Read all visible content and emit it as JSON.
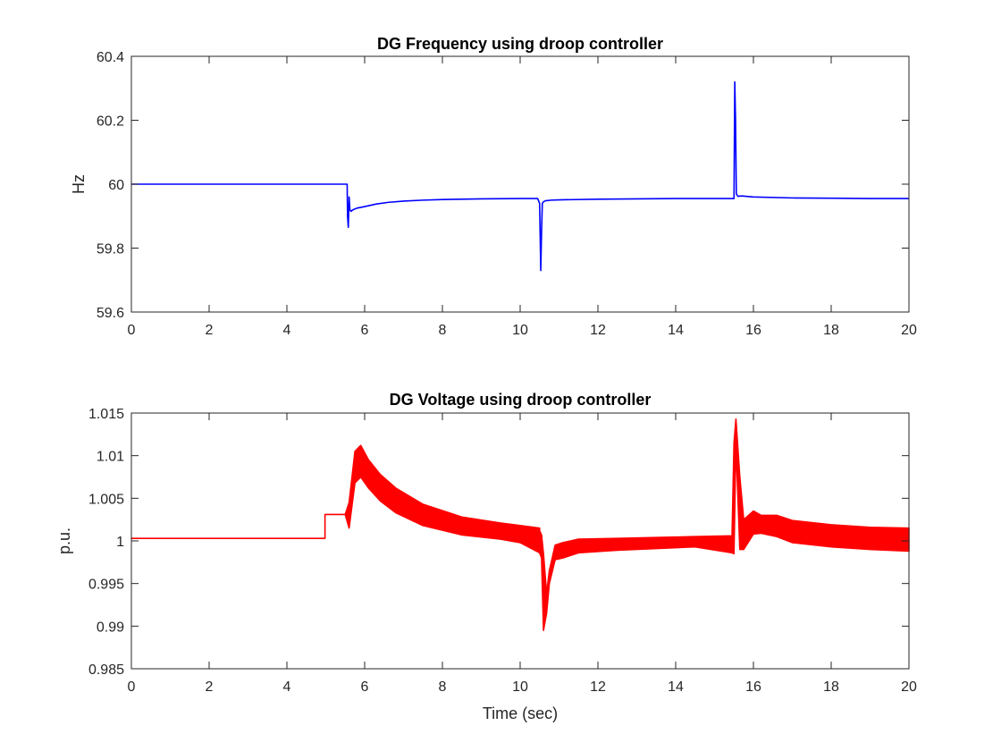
{
  "chart_data": [
    {
      "type": "line",
      "title": "DG Frequency using droop controller",
      "xlabel": "",
      "ylabel": "Hz",
      "xlim": [
        0,
        20
      ],
      "ylim": [
        59.6,
        60.4
      ],
      "xticks": [
        0,
        2,
        4,
        6,
        8,
        10,
        12,
        14,
        16,
        18,
        20
      ],
      "yticks": [
        59.6,
        59.8,
        60,
        60.2,
        60.4
      ],
      "ytick_labels": [
        "59.6",
        "59.8",
        "60",
        "60.2",
        "60.4"
      ],
      "grid": false,
      "color": "#0000ff",
      "series": [
        {
          "x": [
            0,
            5.55,
            5.56,
            5.58,
            5.6,
            5.62,
            5.65,
            5.7,
            5.8,
            6.0,
            6.3,
            6.6,
            7.0,
            7.5,
            8.0,
            9.0,
            10.0,
            10.45,
            10.5,
            10.53,
            10.55,
            10.57,
            10.6,
            10.65,
            10.8,
            11.0,
            12.0,
            13.0,
            14.0,
            15.0,
            15.45,
            15.5,
            15.52,
            15.54,
            15.56,
            15.6,
            15.7,
            16.0,
            17.0,
            18.0,
            19.0,
            20.0
          ],
          "y": [
            60.0,
            60.0,
            59.9,
            59.865,
            59.96,
            59.92,
            59.915,
            59.92,
            59.925,
            59.93,
            59.938,
            59.943,
            59.947,
            59.95,
            59.952,
            59.954,
            59.955,
            59.955,
            59.94,
            59.73,
            59.85,
            59.94,
            59.945,
            59.948,
            59.95,
            59.951,
            59.953,
            59.954,
            59.955,
            59.955,
            59.955,
            59.955,
            60.32,
            60.2,
            59.97,
            59.962,
            59.963,
            59.96,
            59.957,
            59.956,
            59.955,
            59.955
          ]
        }
      ]
    },
    {
      "type": "line",
      "title": "DG Voltage using droop controller",
      "xlabel": "Time (sec)",
      "ylabel": "p.u.",
      "xlim": [
        0,
        20
      ],
      "ylim": [
        0.985,
        1.015
      ],
      "xticks": [
        0,
        2,
        4,
        6,
        8,
        10,
        12,
        14,
        16,
        18,
        20
      ],
      "yticks": [
        0.985,
        0.99,
        0.995,
        1.0,
        1.005,
        1.01,
        1.015
      ],
      "ytick_labels": [
        "0.985",
        "0.99",
        "0.995",
        "1",
        "1.005",
        "1.01",
        "1.015"
      ],
      "grid": false,
      "color": "#ff0000",
      "series": [
        {
          "name": "upper envelope",
          "x": [
            0,
            4.98,
            4.98,
            5.5,
            5.6,
            5.75,
            5.9,
            6.1,
            6.4,
            6.8,
            7.5,
            8.5,
            9.5,
            10.0,
            10.5,
            10.5,
            10.55,
            10.6,
            10.68,
            10.75,
            10.9,
            11.1,
            11.5,
            12.5,
            13.5,
            14.5,
            15.45,
            15.5,
            15.55,
            15.65,
            15.75,
            16.0,
            16.2,
            16.6,
            17.0,
            18.0,
            19.0,
            20.0
          ],
          "y": [
            1.0003,
            1.0003,
            1.0031,
            1.0031,
            1.0045,
            1.0105,
            1.0112,
            1.0095,
            1.0078,
            1.0062,
            1.0043,
            1.0028,
            1.0021,
            1.0018,
            1.0015,
            1.0012,
            1.0007,
            0.9985,
            0.9938,
            0.9965,
            0.9995,
            0.9998,
            1.0002,
            1.0003,
            1.0004,
            1.0005,
            1.0006,
            1.0115,
            1.0143,
            1.0075,
            1.0025,
            1.0035,
            1.003,
            1.003,
            1.0024,
            1.0019,
            1.0016,
            1.0015
          ]
        },
        {
          "name": "lower envelope",
          "x": [
            0,
            4.98,
            4.98,
            5.5,
            5.6,
            5.75,
            5.9,
            6.1,
            6.4,
            6.8,
            7.5,
            8.5,
            9.5,
            10.0,
            10.5,
            10.5,
            10.55,
            10.6,
            10.68,
            10.75,
            10.9,
            11.1,
            11.5,
            12.5,
            13.5,
            14.5,
            15.45,
            15.5,
            15.55,
            15.65,
            15.75,
            16.0,
            16.2,
            16.6,
            17.0,
            18.0,
            19.0,
            20.0
          ],
          "y": [
            1.0003,
            1.0003,
            1.0031,
            1.0031,
            1.0015,
            1.0068,
            1.0075,
            1.0062,
            1.0047,
            1.0033,
            1.0018,
            1.0007,
            1.0002,
            0.9998,
            0.9986,
            0.9986,
            0.998,
            0.9895,
            0.9915,
            0.995,
            0.9978,
            0.998,
            0.9986,
            0.9989,
            0.9991,
            0.9993,
            0.9986,
            0.9985,
            1.0115,
            0.999,
            0.999,
            1.0008,
            1.0009,
            1.0005,
            0.9998,
            0.9993,
            0.999,
            0.9988
          ]
        }
      ]
    }
  ]
}
